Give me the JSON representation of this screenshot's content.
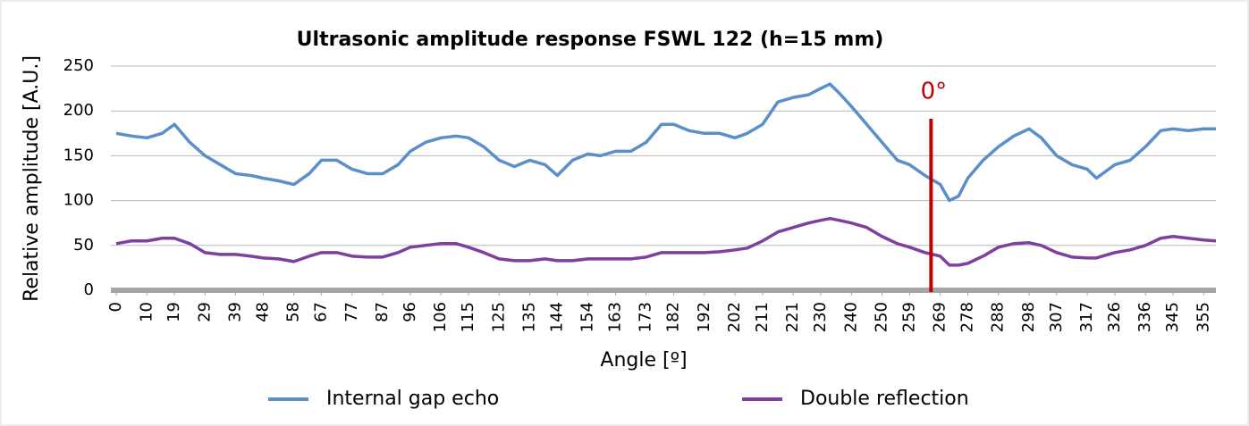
{
  "chart_data": {
    "type": "line",
    "title": "Ultrasonic amplitude response FSWL 122 (h=15 mm)",
    "x_label": "Angle [º]",
    "y_label": "Relative amplitude [A.U.]",
    "x": [
      0,
      5,
      10,
      15,
      19,
      24,
      29,
      34,
      39,
      44,
      48,
      53,
      58,
      63,
      67,
      72,
      77,
      82,
      87,
      92,
      96,
      101,
      106,
      111,
      115,
      120,
      125,
      130,
      135,
      140,
      144,
      149,
      154,
      158,
      163,
      168,
      173,
      178,
      182,
      187,
      192,
      197,
      202,
      206,
      211,
      216,
      221,
      226,
      230,
      233,
      236,
      240,
      245,
      250,
      255,
      259,
      264,
      269,
      272,
      275,
      278,
      283,
      288,
      293,
      298,
      302,
      307,
      312,
      317,
      320,
      326,
      331,
      336,
      341,
      345,
      350,
      355,
      359
    ],
    "series": [
      {
        "name": "Internal gap echo",
        "color": "#5b8fc9",
        "values": [
          175,
          172,
          170,
          175,
          185,
          165,
          150,
          140,
          130,
          128,
          125,
          122,
          118,
          130,
          145,
          145,
          135,
          130,
          130,
          140,
          155,
          165,
          170,
          172,
          170,
          160,
          145,
          138,
          145,
          140,
          128,
          145,
          152,
          150,
          155,
          155,
          165,
          185,
          185,
          178,
          175,
          175,
          170,
          175,
          185,
          210,
          215,
          218,
          225,
          230,
          220,
          205,
          185,
          165,
          145,
          140,
          128,
          118,
          100,
          105,
          125,
          145,
          160,
          172,
          180,
          170,
          150,
          140,
          135,
          125,
          140,
          145,
          160,
          178,
          180,
          178,
          180,
          180
        ]
      },
      {
        "name": "Double reflection",
        "color": "#7f3f9f",
        "values": [
          52,
          55,
          55,
          58,
          58,
          52,
          42,
          40,
          40,
          38,
          36,
          35,
          32,
          38,
          42,
          42,
          38,
          37,
          37,
          42,
          48,
          50,
          52,
          52,
          48,
          42,
          35,
          33,
          33,
          35,
          33,
          33,
          35,
          35,
          35,
          35,
          37,
          42,
          42,
          42,
          42,
          43,
          45,
          47,
          55,
          65,
          70,
          75,
          78,
          80,
          78,
          75,
          70,
          60,
          52,
          48,
          42,
          38,
          28,
          28,
          30,
          38,
          48,
          52,
          53,
          50,
          42,
          37,
          36,
          36,
          42,
          45,
          50,
          58,
          60,
          58,
          56,
          55
        ]
      }
    ],
    "xlim": [
      0,
      359
    ],
    "xticks": [
      0,
      10,
      19,
      29,
      39,
      48,
      58,
      67,
      77,
      87,
      96,
      106,
      115,
      125,
      135,
      144,
      154,
      163,
      173,
      182,
      192,
      202,
      211,
      221,
      230,
      240,
      250,
      259,
      269,
      278,
      288,
      298,
      307,
      317,
      326,
      336,
      345,
      355
    ],
    "ylim": [
      0,
      250
    ],
    "yticks": [
      0,
      50,
      100,
      150,
      200,
      250
    ],
    "grid": true,
    "legend": "bottom",
    "annotation": {
      "text": "0°",
      "x": 266,
      "color": "#c00000"
    }
  }
}
